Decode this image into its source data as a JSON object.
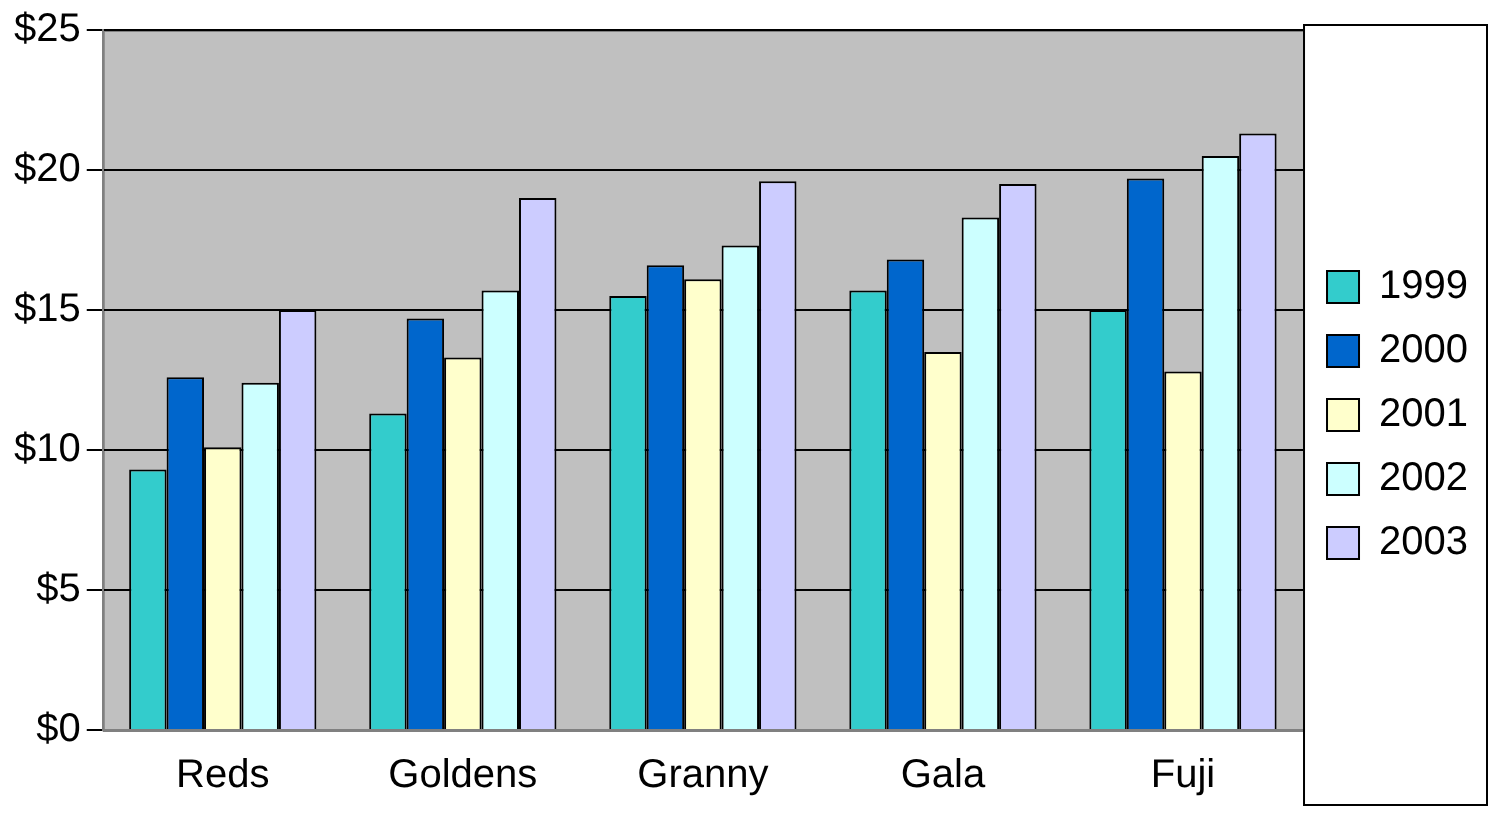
{
  "chart_data": {
    "type": "bar",
    "categories": [
      "Reds",
      "Goldens",
      "Granny",
      "Gala",
      "Fuji"
    ],
    "series": [
      {
        "name": "1999",
        "color": "#33cccc",
        "values": [
          9.3,
          11.3,
          15.5,
          15.7,
          15.0
        ]
      },
      {
        "name": "2000",
        "color": "#0066cc",
        "values": [
          12.6,
          14.7,
          16.6,
          16.8,
          19.7
        ]
      },
      {
        "name": "2001",
        "color": "#ffffcc",
        "values": [
          10.1,
          13.3,
          16.1,
          13.5,
          12.8
        ]
      },
      {
        "name": "2002",
        "color": "#ccffff",
        "values": [
          12.4,
          15.7,
          17.3,
          18.3,
          20.5
        ]
      },
      {
        "name": "2003",
        "color": "#ccccff",
        "values": [
          15.0,
          19.0,
          19.6,
          19.5,
          21.3
        ]
      }
    ],
    "ylim": [
      0,
      25
    ],
    "yticks": [
      {
        "value": 0,
        "label": "$0"
      },
      {
        "value": 5,
        "label": "$5"
      },
      {
        "value": 10,
        "label": "$10"
      },
      {
        "value": 15,
        "label": "$15"
      },
      {
        "value": 20,
        "label": "$20"
      },
      {
        "value": 25,
        "label": "$25"
      }
    ],
    "grid": "y",
    "legend": "right"
  }
}
